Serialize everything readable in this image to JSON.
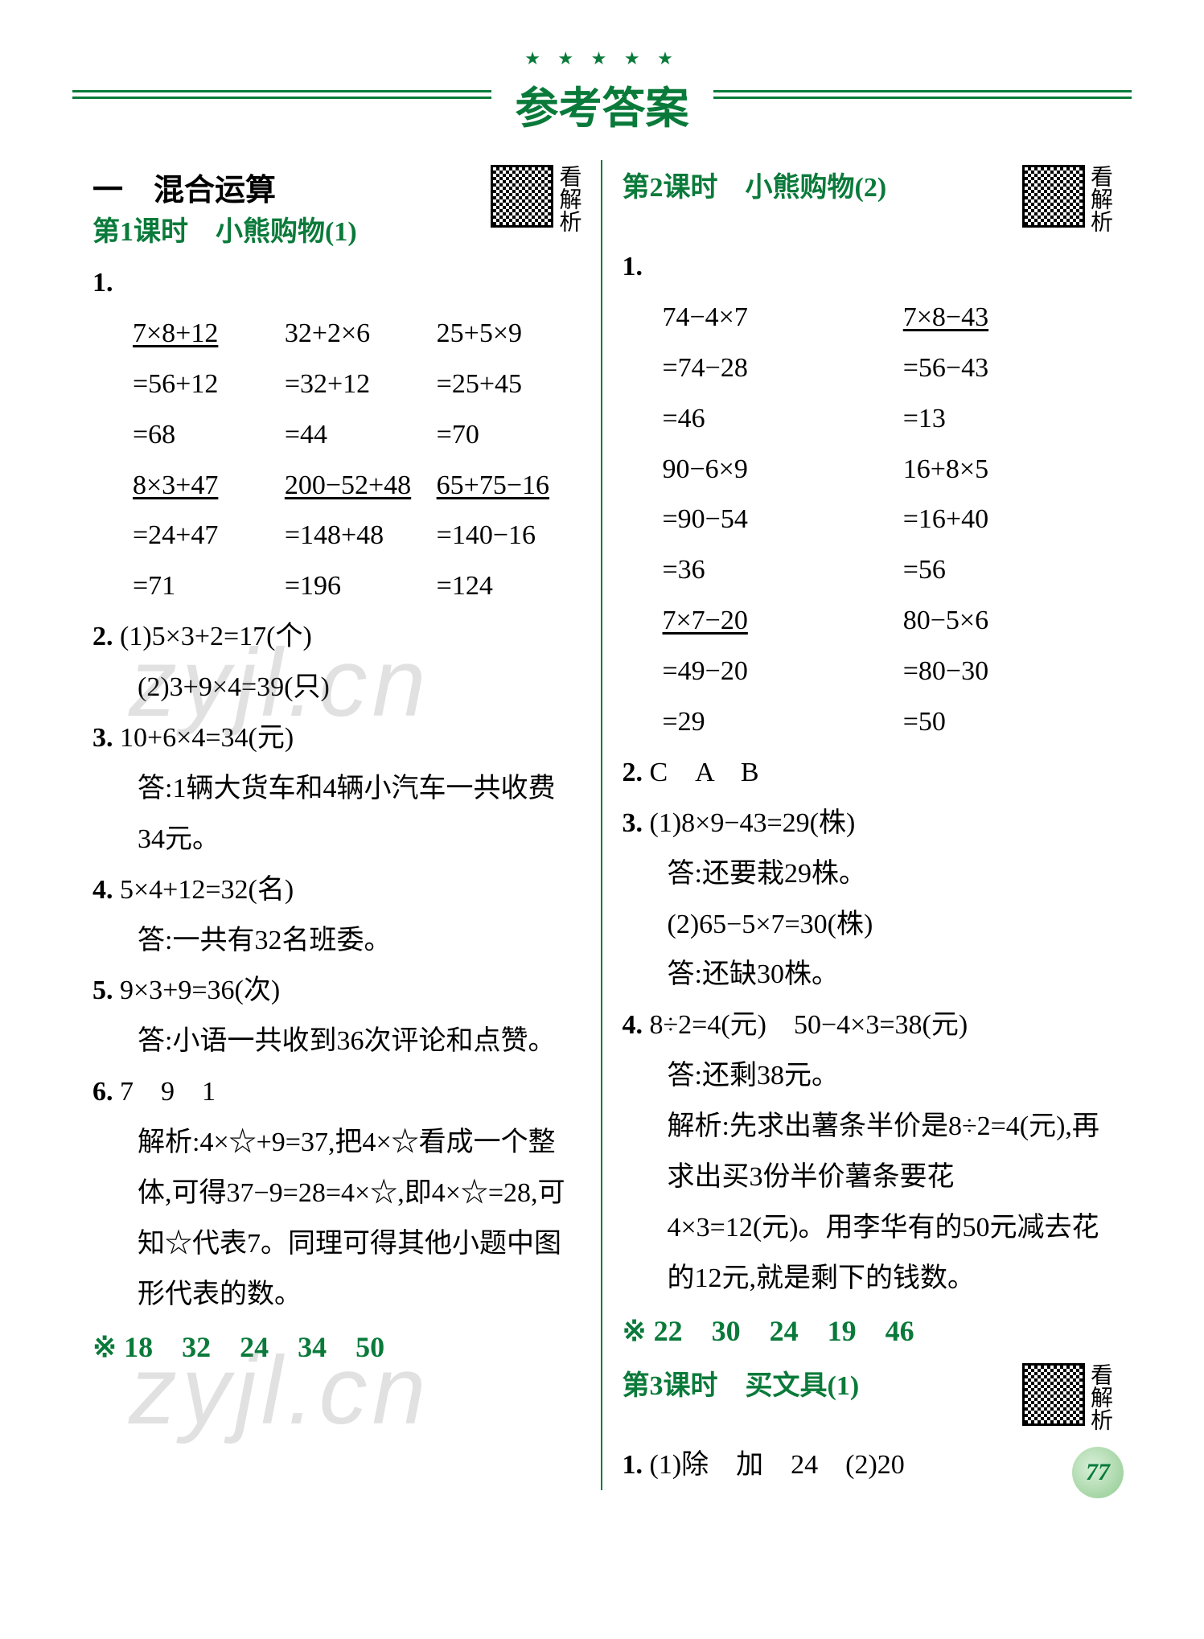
{
  "header": {
    "stars": "★ ★ ★ ★ ★",
    "title": "参考答案"
  },
  "qr_label": "看解析",
  "watermark": "zyjl.cn",
  "page_number": "77",
  "left": {
    "section": "一　混合运算",
    "lesson1": "第1课时　小熊购物(1)",
    "q1": {
      "r1c1": "7×8+12",
      "r1c2": "32+2×6",
      "r1c3": "25+5×9",
      "r2c1": "=56+12",
      "r2c2": "=32+12",
      "r2c3": "=25+45",
      "r3c1": "=68",
      "r3c2": "=44",
      "r3c3": "=70",
      "r4c1": "8×3+47",
      "r4c2": "200−52+48",
      "r4c3": "65+75−16",
      "r5c1": "=24+47",
      "r5c2": "=148+48",
      "r5c3": "=140−16",
      "r6c1": "=71",
      "r6c2": "=196",
      "r6c3": "=124"
    },
    "q2a": "(1)5×3+2=17(个)",
    "q2b": "(2)3+9×4=39(只)",
    "q3a": "10+6×4=34(元)",
    "q3b": "答:1辆大货车和4辆小汽车一共收费34元。",
    "q4a": "5×4+12=32(名)",
    "q4b": "答:一共有32名班委。",
    "q5a": "9×3+9=36(次)",
    "q5b": "答:小语一共收到36次评论和点赞。",
    "q6a": "7　9　1",
    "q6b": "解析:4×☆+9=37,把4×☆看成一个整体,可得37−9=28=4×☆,即4×☆=28,可知☆代表7。同理可得其他小题中图形代表的数。",
    "bonus": "※ 18　32　24　34　50"
  },
  "right": {
    "lesson2": "第2课时　小熊购物(2)",
    "q1": {
      "r1c1": "74−4×7",
      "r1c2": "7×8−43",
      "r2c1": "=74−28",
      "r2c2": "=56−43",
      "r3c1": "=46",
      "r3c2": "=13",
      "r4c1": "90−6×9",
      "r4c2": "16+8×5",
      "r5c1": "=90−54",
      "r5c2": "=16+40",
      "r6c1": "=36",
      "r6c2": "=56",
      "r7c1": "7×7−20",
      "r7c2": "80−5×6",
      "r8c1": "=49−20",
      "r8c2": "=80−30",
      "r9c1": "=29",
      "r9c2": "=50"
    },
    "q2": "C　A　B",
    "q3a": "(1)8×9−43=29(株)",
    "q3b": "答:还要栽29株。",
    "q3c": "(2)65−5×7=30(株)",
    "q3d": "答:还缺30株。",
    "q4a": "8÷2=4(元)　50−4×3=38(元)",
    "q4b": "答:还剩38元。",
    "q4c": "解析:先求出薯条半价是8÷2=4(元),再求出买3份半价薯条要花4×3=12(元)。用李华有的50元减去花的12元,就是剩下的钱数。",
    "bonus": "※ 22　30　24　19　46",
    "lesson3": "第3课时　买文具(1)",
    "q1_l3": "(1)除　加　24　(2)20"
  },
  "labels": {
    "n1": "1.",
    "n2": "2.",
    "n3": "3.",
    "n4": "4.",
    "n5": "5.",
    "n6": "6."
  },
  "colors": {
    "accent": "#0a7a3a",
    "text": "#000000",
    "background": "#ffffff"
  }
}
